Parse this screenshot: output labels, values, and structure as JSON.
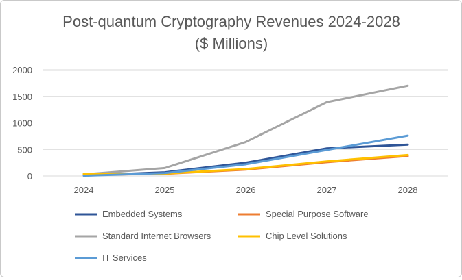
{
  "chart_data": {
    "type": "line",
    "title": "Post-quantum Cryptography Revenues 2024-2028",
    "subtitle": "($ Millions)",
    "categories": [
      "2024",
      "2025",
      "2026",
      "2027",
      "2028"
    ],
    "ylim": [
      0,
      2000
    ],
    "yticks": [
      "0",
      "500",
      "1000",
      "1500",
      "2000"
    ],
    "grid": true,
    "legend_position": "bottom",
    "series": [
      {
        "name": "Embedded Systems",
        "color": "#2F5597",
        "values": [
          10,
          70,
          250,
          520,
          590
        ]
      },
      {
        "name": "Special Purpose Software",
        "color": "#ED7D31",
        "values": [
          20,
          40,
          120,
          260,
          375
        ]
      },
      {
        "name": "Standard Internet Browsers",
        "color": "#A5A5A5",
        "values": [
          30,
          150,
          640,
          1390,
          1700
        ]
      },
      {
        "name": "Chip Level Solutions",
        "color": "#FFC000",
        "values": [
          40,
          45,
          130,
          275,
          395
        ]
      },
      {
        "name": "IT Services",
        "color": "#5B9BD5",
        "values": [
          5,
          55,
          220,
          490,
          760
        ]
      }
    ]
  }
}
